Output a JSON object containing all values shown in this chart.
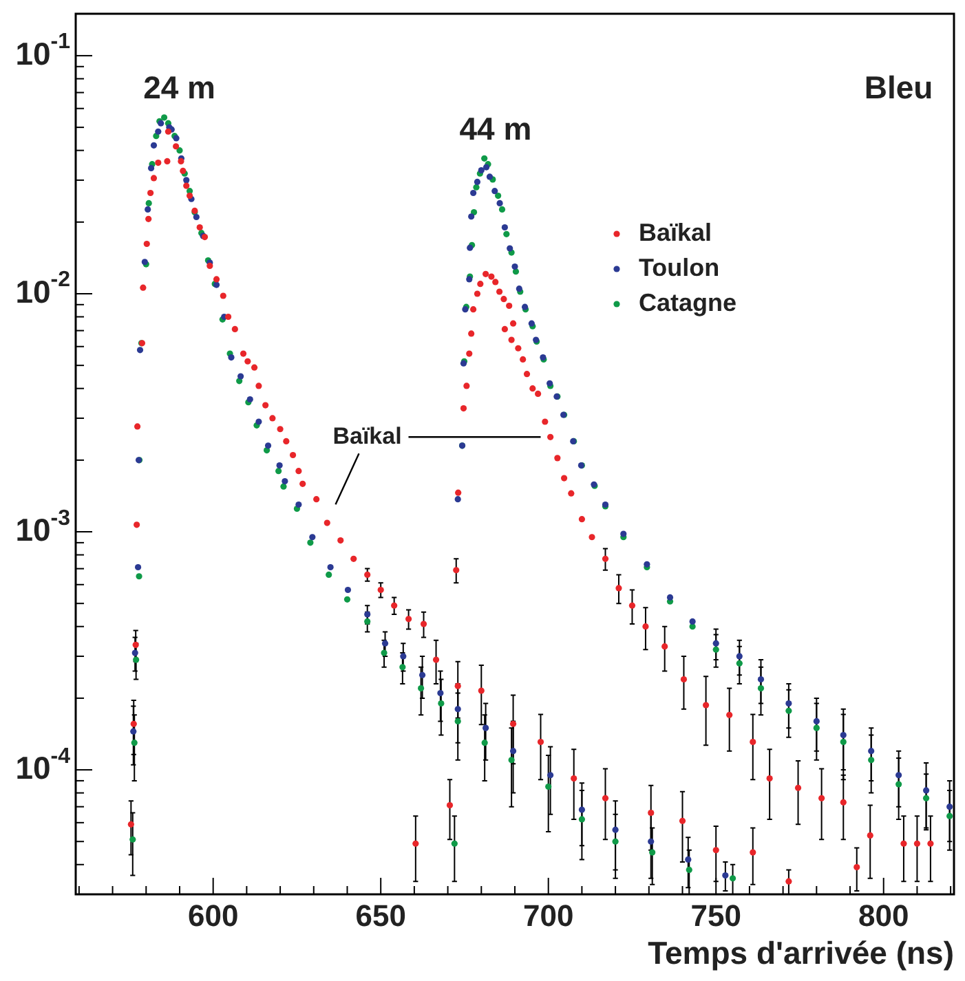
{
  "chart_data": {
    "type": "scatter",
    "xlabel": "Temps d'arrivée (ns)",
    "log": "y",
    "marker": "circle",
    "legend": "top right",
    "xlim": [
      559,
      821
    ],
    "ylim": [
      3e-05,
      0.15
    ],
    "xticks": [
      {
        "value": 560,
        "label": null
      },
      {
        "value": 570,
        "label": null
      },
      {
        "value": 580,
        "label": null
      },
      {
        "value": 590,
        "label": null
      },
      600,
      {
        "value": 610,
        "label": null
      },
      {
        "value": 620,
        "label": null
      },
      {
        "value": 630,
        "label": null
      },
      {
        "value": 640,
        "label": null
      },
      650,
      {
        "value": 660,
        "label": null
      },
      {
        "value": 670,
        "label": null
      },
      {
        "value": 680,
        "label": null
      },
      {
        "value": 690,
        "label": null
      },
      700,
      {
        "value": 710,
        "label": null
      },
      {
        "value": 720,
        "label": null
      },
      {
        "value": 730,
        "label": null
      },
      {
        "value": 740,
        "label": null
      },
      750,
      {
        "value": 760,
        "label": null
      },
      {
        "value": 770,
        "label": null
      },
      {
        "value": 780,
        "label": null
      },
      {
        "value": 790,
        "label": null
      },
      800,
      {
        "value": 810,
        "label": null
      },
      {
        "value": 820,
        "label": null
      }
    ],
    "yticks": [
      {
        "value": 3e-05,
        "label": null
      },
      {
        "value": 4e-05,
        "label": null
      },
      {
        "value": 5e-05,
        "label": null
      },
      {
        "value": 6e-05,
        "label": null
      },
      {
        "value": 7e-05,
        "label": null
      },
      {
        "value": 8e-05,
        "label": null
      },
      {
        "value": 9e-05,
        "label": null
      },
      {
        "value": 0.0001,
        "label": "10$^{-4}$"
      },
      {
        "value": 0.0002,
        "label": null
      },
      {
        "value": 0.0003,
        "label": null
      },
      {
        "value": 0.0004,
        "label": null
      },
      {
        "value": 0.0005,
        "label": null
      },
      {
        "value": 0.0006,
        "label": null
      },
      {
        "value": 0.0007,
        "label": null
      },
      {
        "value": 0.0008,
        "label": null
      },
      {
        "value": 0.0009,
        "label": null
      },
      {
        "value": 0.001,
        "label": "10$^{-3}$"
      },
      {
        "value": 0.002,
        "label": null
      },
      {
        "value": 0.003,
        "label": null
      },
      {
        "value": 0.004,
        "label": null
      },
      {
        "value": 0.005,
        "label": null
      },
      {
        "value": 0.006,
        "label": null
      },
      {
        "value": 0.007,
        "label": null
      },
      {
        "value": 0.008,
        "label": null
      },
      {
        "value": 0.009,
        "label": null
      },
      {
        "value": 0.01,
        "label": "10$^{-2}$"
      },
      {
        "value": 0.02,
        "label": null
      },
      {
        "value": 0.03,
        "label": null
      },
      {
        "value": 0.04,
        "label": null
      },
      {
        "value": 0.05,
        "label": null
      },
      {
        "value": 0.06,
        "label": null
      },
      {
        "value": 0.07,
        "label": null
      },
      {
        "value": 0.08,
        "label": null
      },
      {
        "value": 0.09,
        "label": null
      },
      {
        "value": 0.1,
        "label": "10$^{-1}$"
      }
    ],
    "annotations": [
      "24 m",
      "44 m",
      {
        "text": "Baïkal",
        "x": 697.7,
        "y": 0.0025
      },
      "Bleu"
    ],
    "series": [
      {
        "name": "Baïkal",
        "color": "#e8262a",
        "x": [
          575.5,
          576.3,
          576.9,
          577.2,
          577.4,
          578.8,
          579.1,
          580.2,
          580.7,
          581.3,
          582.3,
          583.6,
          586.3,
          586.6,
          588.9,
          590.4,
          591,
          592,
          593,
          594.5,
          596,
          597.5,
          599,
          601,
          603,
          604.5,
          606.5,
          609,
          610.3,
          612.3,
          613.6,
          615.6,
          617.7,
          620,
          621.8,
          623.8,
          625.5,
          626.7,
          630.8,
          634,
          638,
          641.9,
          646,
          650,
          654,
          658.3,
          662.8,
          666.5,
          673,
          680,
          689.5,
          697.7,
          707.6,
          717,
          730.6,
          740,
          750,
          761,
          771.7,
          792,
          810,
          660.4,
          670.6,
          672.5,
          673.1,
          674.7,
          675.6,
          676.4,
          677,
          677.6,
          678.8,
          679.7,
          681.3,
          683,
          684.2,
          685.4,
          686.7,
          687,
          688.3,
          689,
          689.5,
          691,
          692.4,
          693.6,
          695.3,
          696.9,
          699,
          700.6,
          702.7,
          704.7,
          706.8,
          710,
          713,
          717,
          721,
          725,
          729,
          734.7,
          740.4,
          747,
          754,
          761,
          766,
          774.5,
          781.5,
          788,
          796,
          806,
          814
        ],
        "values": [
          5.9e-05,
          0.000156,
          0.000335,
          0.00107,
          0.00277,
          0.0062,
          0.0106,
          0.0162,
          0.0206,
          0.0265,
          0.0306,
          0.0355,
          0.036,
          0.048,
          0.0416,
          0.036,
          0.0328,
          0.0284,
          0.0258,
          0.0223,
          0.019,
          0.0173,
          0.0131,
          0.0115,
          0.0098,
          0.008,
          0.0071,
          0.0056,
          0.0052,
          0.0049,
          0.0041,
          0.0034,
          0.003,
          0.0027,
          0.0024,
          0.0021,
          0.0018,
          0.00159,
          0.00137,
          0.00109,
          0.00092,
          0.00077,
          0.00066,
          0.00057,
          0.00049,
          0.00043,
          0.00041,
          0.00029,
          0.000225,
          0.000215,
          0.000156,
          0.000131,
          9.2e-05,
          7.6e-05,
          6.6e-05,
          6.1e-05,
          4.6e-05,
          4.5e-05,
          3.4e-05,
          3.9e-05,
          4.9e-05,
          4.9e-05,
          7.1e-05,
          0.00069,
          0.00146,
          0.0033,
          0.0041,
          0.0056,
          0.0068,
          0.0086,
          0.01,
          0.011,
          0.0121,
          0.0118,
          0.0112,
          0.0102,
          0.0095,
          0.0071,
          0.0089,
          0.0064,
          0.0075,
          0.0059,
          0.0053,
          0.0046,
          0.004,
          0.0038,
          0.0029,
          0.0025,
          0.00204,
          0.00168,
          0.00145,
          0.00113,
          0.00095,
          0.00077,
          0.00058,
          0.00049,
          0.0004,
          0.00033,
          0.00024,
          0.000187,
          0.00017,
          0.000131,
          9.2e-05,
          8.4e-05,
          7.6e-05,
          7.3e-05,
          5.3e-05,
          4.9e-05,
          4.9e-05
        ],
        "errors": [
          1.5e-05,
          4e-05,
          5e-05,
          null,
          null,
          null,
          null,
          null,
          null,
          null,
          null,
          null,
          null,
          null,
          null,
          null,
          null,
          null,
          null,
          null,
          null,
          null,
          null,
          null,
          null,
          null,
          null,
          null,
          null,
          null,
          null,
          null,
          null,
          null,
          null,
          null,
          null,
          null,
          null,
          null,
          null,
          null,
          4e-05,
          4e-05,
          4e-05,
          4e-05,
          5e-05,
          6e-05,
          6e-05,
          6e-05,
          5e-05,
          4e-05,
          3e-05,
          2.5e-05,
          2e-05,
          2e-05,
          1.2e-05,
          1.2e-05,
          4e-06,
          8e-06,
          1.5e-05,
          1.5e-05,
          2e-05,
          8e-05,
          null,
          null,
          null,
          null,
          null,
          null,
          null,
          null,
          null,
          null,
          null,
          null,
          null,
          null,
          null,
          null,
          null,
          null,
          null,
          null,
          null,
          null,
          null,
          null,
          null,
          null,
          null,
          null,
          null,
          8e-05,
          8e-05,
          8e-05,
          8e-05,
          7e-05,
          6e-05,
          6e-05,
          5e-05,
          4e-05,
          3e-05,
          2.5e-05,
          2.5e-05,
          2.2e-05,
          1.8e-05,
          1.5e-05,
          1.5e-05
        ]
      },
      {
        "name": "Toulon",
        "color": "#2b3a93",
        "x": [
          576.2,
          576.7,
          577.6,
          577.8,
          578.2,
          579.6,
          580.5,
          581.5,
          582.3,
          583.6,
          584.4,
          586.9,
          587.6,
          589,
          590.5,
          592,
          593.5,
          595,
          597,
          599,
          601,
          603.3,
          605.4,
          608.2,
          611,
          613.6,
          616.4,
          619.8,
          621.4,
          625.5,
          629.6,
          635,
          640.2,
          646,
          651.3,
          656.7,
          662.4,
          667.8,
          673,
          681.3,
          689.5,
          700.6,
          710,
          720,
          730.6,
          741.7,
          752.8,
          673,
          674.3,
          674.7,
          675.2,
          676.4,
          676.6,
          677,
          677.6,
          678.8,
          680,
          681.5,
          682.5,
          684,
          685.5,
          687,
          688.5,
          690,
          691.3,
          693,
          695,
          696.3,
          698.4,
          700.4,
          702.5,
          704.5,
          707.4,
          709.8,
          713.6,
          717,
          722.4,
          729.4,
          736.3,
          743,
          750,
          757,
          763.4,
          771.7,
          780,
          788,
          796.3,
          804.5,
          812.7,
          819.7
        ],
        "values": [
          0.000145,
          0.00031,
          0.00071,
          0.002,
          0.0058,
          0.0136,
          0.0226,
          0.0337,
          0.042,
          0.048,
          0.052,
          0.05,
          0.049,
          0.045,
          0.037,
          0.03,
          0.025,
          0.021,
          0.0175,
          0.0135,
          0.0109,
          0.008,
          0.0054,
          0.0045,
          0.0036,
          0.0029,
          0.0023,
          0.0019,
          0.00163,
          0.0013,
          0.00095,
          0.00071,
          0.00057,
          0.00045,
          0.00034,
          0.0003,
          0.00025,
          0.00021,
          0.00018,
          0.00015,
          0.00012,
          9.5e-05,
          6.8e-05,
          5.6e-05,
          5e-05,
          4.2e-05,
          3.6e-05,
          0.00137,
          0.0023,
          0.0051,
          0.0086,
          0.0115,
          0.0156,
          0.0211,
          0.0265,
          0.0295,
          0.033,
          0.034,
          0.031,
          0.027,
          0.024,
          0.019,
          0.0155,
          0.013,
          0.0105,
          0.0088,
          0.0075,
          0.0064,
          0.0054,
          0.0042,
          0.0037,
          0.0031,
          0.0024,
          0.0019,
          0.00158,
          0.0013,
          0.00098,
          0.00073,
          0.00053,
          0.00042,
          0.00034,
          0.0003,
          0.00024,
          0.00019,
          0.00016,
          0.00014,
          0.00012,
          9.5e-05,
          8.2e-05,
          7e-05
        ],
        "errors": [
          4e-05,
          5e-05,
          null,
          null,
          null,
          null,
          null,
          null,
          null,
          null,
          null,
          null,
          null,
          null,
          null,
          null,
          null,
          null,
          null,
          null,
          null,
          null,
          null,
          null,
          null,
          null,
          null,
          null,
          null,
          null,
          null,
          null,
          null,
          4e-05,
          4e-05,
          4e-05,
          5e-05,
          5e-05,
          5e-05,
          4e-05,
          4e-05,
          3e-05,
          2e-05,
          1.8e-05,
          1.5e-05,
          1e-05,
          5e-06,
          null,
          null,
          null,
          null,
          null,
          null,
          null,
          null,
          null,
          null,
          null,
          null,
          null,
          null,
          null,
          null,
          null,
          null,
          null,
          null,
          null,
          null,
          null,
          null,
          null,
          null,
          null,
          null,
          null,
          null,
          null,
          null,
          null,
          5e-05,
          5e-05,
          5e-05,
          4e-05,
          4e-05,
          4e-05,
          3e-05,
          2.5e-05,
          2.5e-05,
          2e-05
        ]
      },
      {
        "name": "Catagne",
        "color": "#0f9a48",
        "x": [
          576,
          576.5,
          577,
          577.9,
          578,
          578.6,
          580,
          580.8,
          581.8,
          583,
          584,
          585.4,
          586.6,
          588.5,
          590,
          591.5,
          593,
          594.5,
          596.5,
          598.5,
          600.5,
          602.8,
          605,
          607.8,
          610.5,
          613,
          616,
          619.5,
          621,
          625,
          629,
          634.5,
          640,
          646,
          651,
          656.5,
          662,
          668,
          673,
          681,
          689,
          700,
          710,
          720,
          731,
          742,
          755,
          672,
          674.3,
          674.9,
          675.5,
          676.6,
          677.2,
          677.8,
          678.5,
          679.6,
          680.9,
          682,
          683.4,
          685,
          686.2,
          687.5,
          689,
          690.3,
          691.6,
          693.2,
          695.3,
          696.5,
          698.6,
          700.6,
          702.7,
          704.7,
          707.6,
          710,
          713.8,
          717,
          722.4,
          729.4,
          736.3,
          743,
          750,
          757,
          763.4,
          771.7,
          780,
          788,
          796.3,
          804.5,
          812.7,
          819.7
        ],
        "values": [
          5.1e-05,
          0.00013,
          0.00029,
          0.00065,
          0.002,
          0.0062,
          0.0133,
          0.024,
          0.035,
          0.046,
          0.053,
          0.055,
          0.052,
          0.046,
          0.04,
          0.032,
          0.027,
          0.022,
          0.018,
          0.0138,
          0.011,
          0.0078,
          0.0056,
          0.0043,
          0.0035,
          0.0028,
          0.0022,
          0.0018,
          0.00155,
          0.00125,
          0.0009,
          0.00066,
          0.00052,
          0.00042,
          0.00031,
          0.00027,
          0.00022,
          0.00019,
          0.00016,
          0.00013,
          0.00011,
          8.5e-05,
          6.2e-05,
          5e-05,
          4.5e-05,
          3.8e-05,
          3.5e-05,
          4.9e-05,
          0.0023,
          0.0052,
          0.0088,
          0.0118,
          0.016,
          0.022,
          0.028,
          0.032,
          0.037,
          0.035,
          0.0302,
          0.0258,
          0.0226,
          0.0178,
          0.0149,
          0.0124,
          0.0102,
          0.0086,
          0.0073,
          0.0063,
          0.0053,
          0.0041,
          0.0037,
          0.0031,
          0.0024,
          0.0019,
          0.00156,
          0.00128,
          0.00095,
          0.00071,
          0.00051,
          0.0004,
          0.00032,
          0.00028,
          0.00022,
          0.000177,
          0.00015,
          0.000131,
          0.00011,
          8.7e-05,
          7.6e-05,
          6.4e-05
        ],
        "errors": [
          1.5e-05,
          4e-05,
          5e-05,
          null,
          null,
          null,
          null,
          null,
          null,
          null,
          null,
          null,
          null,
          null,
          null,
          null,
          null,
          null,
          null,
          null,
          null,
          null,
          null,
          null,
          null,
          null,
          null,
          null,
          null,
          null,
          null,
          null,
          null,
          4e-05,
          4e-05,
          4e-05,
          5e-05,
          5e-05,
          5e-05,
          4e-05,
          4e-05,
          3e-05,
          2e-05,
          1.5e-05,
          1.2e-05,
          8e-06,
          5e-06,
          1.5e-05,
          null,
          null,
          null,
          null,
          null,
          null,
          null,
          null,
          null,
          null,
          null,
          null,
          null,
          null,
          null,
          null,
          null,
          null,
          null,
          null,
          null,
          null,
          null,
          null,
          null,
          null,
          null,
          null,
          null,
          null,
          null,
          null,
          5e-05,
          5e-05,
          5e-05,
          4e-05,
          4e-05,
          4e-05,
          3e-05,
          2.5e-05,
          2e-05,
          1.8e-05
        ]
      }
    ]
  }
}
